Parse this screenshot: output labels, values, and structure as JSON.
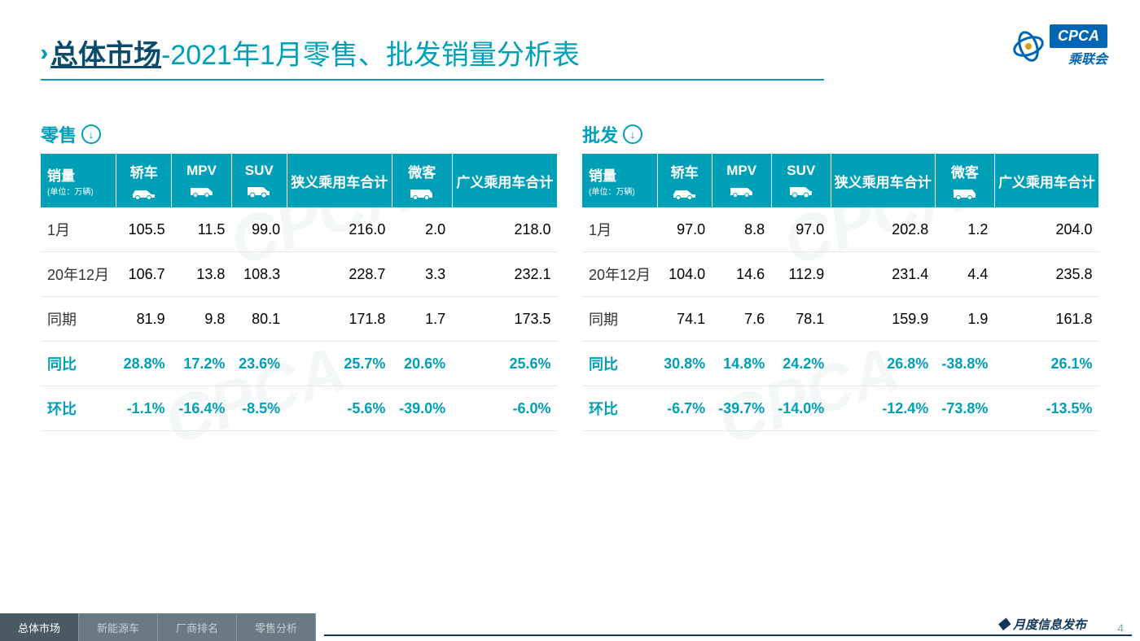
{
  "title": {
    "bold": "总体市场",
    "rest": "-2021年1月零售、批发销量分析表"
  },
  "logo": {
    "badge": "CPCA",
    "sub": "乘联会"
  },
  "colors": {
    "primary": "#009fb8",
    "navy": "#0a4a6a",
    "tab_bg": "#6a7a85"
  },
  "columns": [
    {
      "key": "label",
      "header": "销量",
      "unit": "(单位：万辆)"
    },
    {
      "key": "sedan",
      "header": "轿车",
      "icon": "sedan"
    },
    {
      "key": "mpv",
      "header": "MPV",
      "icon": "mpv"
    },
    {
      "key": "suv",
      "header": "SUV",
      "icon": "suv"
    },
    {
      "key": "narrow",
      "header": "狭义乘用车合计"
    },
    {
      "key": "mini",
      "header": "微客",
      "icon": "van"
    },
    {
      "key": "broad",
      "header": "广义乘用车合计"
    }
  ],
  "retail": {
    "title": "零售",
    "rows": [
      {
        "label": "1月",
        "vals": [
          "105.5",
          "11.5",
          "99.0",
          "216.0",
          "2.0",
          "218.0"
        ],
        "hl": false
      },
      {
        "label": "20年12月",
        "vals": [
          "106.7",
          "13.8",
          "108.3",
          "228.7",
          "3.3",
          "232.1"
        ],
        "hl": false
      },
      {
        "label": "同期",
        "vals": [
          "81.9",
          "9.8",
          "80.1",
          "171.8",
          "1.7",
          "173.5"
        ],
        "hl": false
      },
      {
        "label": "同比",
        "vals": [
          "28.8%",
          "17.2%",
          "23.6%",
          "25.7%",
          "20.6%",
          "25.6%"
        ],
        "hl": true
      },
      {
        "label": "环比",
        "vals": [
          "-1.1%",
          "-16.4%",
          "-8.5%",
          "-5.6%",
          "-39.0%",
          "-6.0%"
        ],
        "hl": true
      }
    ]
  },
  "wholesale": {
    "title": "批发",
    "rows": [
      {
        "label": "1月",
        "vals": [
          "97.0",
          "8.8",
          "97.0",
          "202.8",
          "1.2",
          "204.0"
        ],
        "hl": false
      },
      {
        "label": "20年12月",
        "vals": [
          "104.0",
          "14.6",
          "112.9",
          "231.4",
          "4.4",
          "235.8"
        ],
        "hl": false
      },
      {
        "label": "同期",
        "vals": [
          "74.1",
          "7.6",
          "78.1",
          "159.9",
          "1.9",
          "161.8"
        ],
        "hl": false
      },
      {
        "label": "同比",
        "vals": [
          "30.8%",
          "14.8%",
          "24.2%",
          "26.8%",
          "-38.8%",
          "26.1%"
        ],
        "hl": true
      },
      {
        "label": "环比",
        "vals": [
          "-6.7%",
          "-39.7%",
          "-14.0%",
          "-12.4%",
          "-73.8%",
          "-13.5%"
        ],
        "hl": true
      }
    ]
  },
  "footer": {
    "tabs": [
      "总体市场",
      "新能源车",
      "厂商排名",
      "零售分析"
    ],
    "active_tab": 0,
    "label": "月度信息发布",
    "page": "4"
  },
  "watermark": "CPCA"
}
